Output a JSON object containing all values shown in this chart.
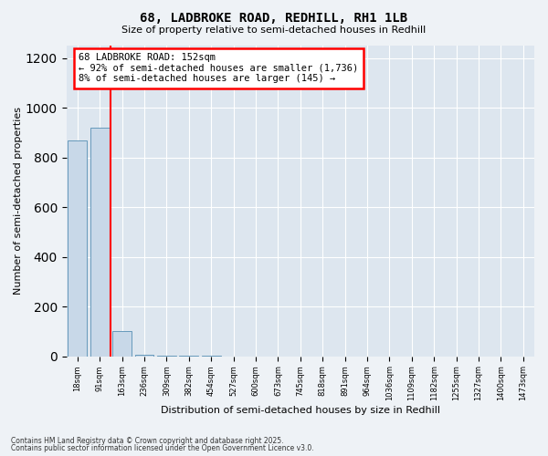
{
  "title": "68, LADBROKE ROAD, REDHILL, RH1 1LB",
  "subtitle": "Size of property relative to semi-detached houses in Redhill",
  "xlabel": "Distribution of semi-detached houses by size in Redhill",
  "ylabel": "Number of semi-detached properties",
  "footnote1": "Contains HM Land Registry data © Crown copyright and database right 2025.",
  "footnote2": "Contains public sector information licensed under the Open Government Licence v3.0.",
  "bins": [
    "18sqm",
    "91sqm",
    "163sqm",
    "236sqm",
    "309sqm",
    "382sqm",
    "454sqm",
    "527sqm",
    "600sqm",
    "673sqm",
    "745sqm",
    "818sqm",
    "891sqm",
    "964sqm",
    "1036sqm",
    "1109sqm",
    "1182sqm",
    "1255sqm",
    "1327sqm",
    "1400sqm",
    "1473sqm"
  ],
  "values": [
    870,
    920,
    100,
    5,
    2,
    1,
    1,
    0,
    0,
    0,
    0,
    0,
    0,
    0,
    0,
    0,
    0,
    0,
    0,
    0,
    0
  ],
  "bar_color": "#c8d8e8",
  "bar_edge_color": "#6699bb",
  "vline_color": "red",
  "vline_position": 1.5,
  "annotation_title": "68 LADBROKE ROAD: 152sqm",
  "annotation_line2": "← 92% of semi-detached houses are smaller (1,736)",
  "annotation_line3": "8% of semi-detached houses are larger (145) →",
  "annotation_box_edgecolor": "red",
  "ylim": [
    0,
    1250
  ],
  "background_color": "#eef2f6",
  "plot_background": "#dde6ef"
}
